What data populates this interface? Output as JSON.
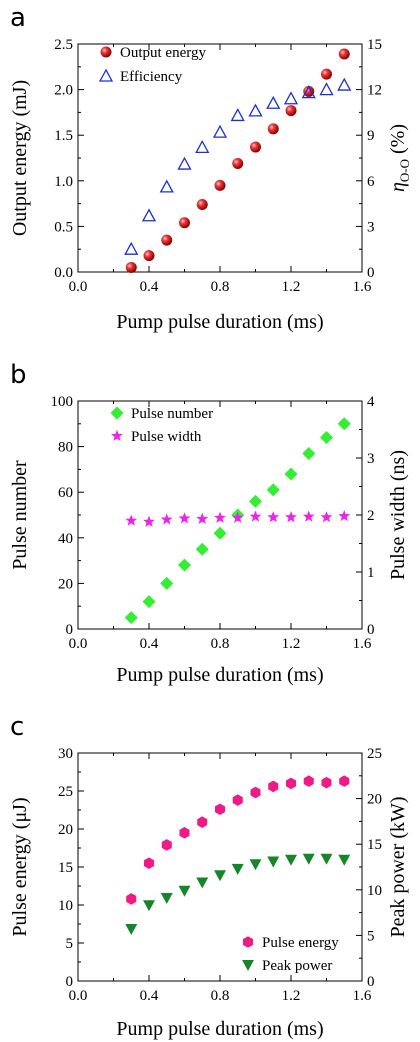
{
  "chart_data": [
    {
      "panel": "a",
      "type": "scatter",
      "xlabel": "Pump pulse duration (ms)",
      "ylabel": "Output energy (mJ)",
      "y2label": "η_{O-O} (%)",
      "xlim": [
        0.0,
        1.6
      ],
      "ylim": [
        0.0,
        2.5
      ],
      "y2lim": [
        0,
        15
      ],
      "xticks": [
        "0.0",
        "0.4",
        "0.8",
        "1.2",
        "1.6"
      ],
      "yticks": [
        "0.0",
        "0.5",
        "1.0",
        "1.5",
        "2.0",
        "2.5"
      ],
      "y2ticks": [
        "0",
        "3",
        "6",
        "9",
        "12",
        "15"
      ],
      "legend_position": "top-left",
      "series": [
        {
          "name": "Output energy",
          "axis": "left",
          "marker": "sphere",
          "color": "#e8192c",
          "x": [
            0.3,
            0.4,
            0.5,
            0.6,
            0.7,
            0.8,
            0.9,
            1.0,
            1.1,
            1.2,
            1.3,
            1.4,
            1.5
          ],
          "y": [
            0.05,
            0.18,
            0.35,
            0.54,
            0.74,
            0.95,
            1.19,
            1.37,
            1.57,
            1.77,
            1.98,
            2.17,
            2.39
          ]
        },
        {
          "name": "Efficiency",
          "axis": "right",
          "marker": "open-triangle",
          "color": "#1c2fd6",
          "x": [
            0.3,
            0.4,
            0.5,
            0.6,
            0.7,
            0.8,
            0.9,
            1.0,
            1.1,
            1.2,
            1.3,
            1.4,
            1.5
          ],
          "y": [
            1.5,
            3.7,
            5.6,
            7.1,
            8.2,
            9.2,
            10.3,
            10.6,
            11.1,
            11.4,
            11.8,
            12.0,
            12.3
          ]
        }
      ]
    },
    {
      "panel": "b",
      "type": "scatter",
      "xlabel": "Pump pulse duration (ms)",
      "ylabel": "Pulse number",
      "y2label": "Pulse width (ns)",
      "xlim": [
        0.0,
        1.6
      ],
      "ylim": [
        0,
        100
      ],
      "y2lim": [
        0,
        4
      ],
      "xticks": [
        "0.0",
        "0.4",
        "0.8",
        "1.2",
        "1.6"
      ],
      "yticks": [
        "0",
        "20",
        "40",
        "60",
        "80",
        "100"
      ],
      "y2ticks": [
        "0",
        "1",
        "2",
        "3",
        "4"
      ],
      "legend_position": "top-left",
      "series": [
        {
          "name": "Pulse number",
          "axis": "left",
          "marker": "diamond",
          "color": "#33ee33",
          "x": [
            0.3,
            0.4,
            0.5,
            0.6,
            0.7,
            0.8,
            0.9,
            1.0,
            1.1,
            1.2,
            1.3,
            1.4,
            1.5
          ],
          "y": [
            5,
            12,
            20,
            28,
            35,
            42,
            50,
            56,
            61,
            68,
            77,
            84,
            90
          ]
        },
        {
          "name": "Pulse width",
          "axis": "right",
          "marker": "star",
          "color": "#ee22ee",
          "x": [
            0.3,
            0.4,
            0.5,
            0.6,
            0.7,
            0.8,
            0.9,
            1.0,
            1.1,
            1.2,
            1.3,
            1.4,
            1.5
          ],
          "y": [
            1.9,
            1.88,
            1.92,
            1.94,
            1.93,
            1.95,
            1.95,
            1.97,
            1.96,
            1.96,
            1.97,
            1.96,
            1.98
          ]
        }
      ]
    },
    {
      "panel": "c",
      "type": "scatter",
      "xlabel": "Pump pulse duration (ms)",
      "ylabel": "Pulse energy (μJ)",
      "y2label": "Peak power (kW)",
      "xlim": [
        0.0,
        1.6
      ],
      "ylim": [
        0,
        30
      ],
      "y2lim": [
        0,
        25
      ],
      "xticks": [
        "0.0",
        "0.4",
        "0.8",
        "1.2",
        "1.6"
      ],
      "yticks": [
        "0",
        "5",
        "10",
        "15",
        "20",
        "25",
        "30"
      ],
      "y2ticks": [
        "0",
        "5",
        "10",
        "15",
        "20",
        "25"
      ],
      "legend_position": "bottom-right",
      "series": [
        {
          "name": "Pulse energy",
          "axis": "left",
          "marker": "hexagon",
          "color": "#ee1a88",
          "x": [
            0.3,
            0.4,
            0.5,
            0.6,
            0.7,
            0.8,
            0.9,
            1.0,
            1.1,
            1.2,
            1.3,
            1.4,
            1.5
          ],
          "y": [
            10.8,
            15.5,
            17.9,
            19.5,
            20.9,
            22.6,
            23.8,
            24.8,
            25.6,
            26.0,
            26.3,
            26.1,
            26.3
          ]
        },
        {
          "name": "Peak power",
          "axis": "right",
          "marker": "down-triangle",
          "color": "#17862a",
          "x": [
            0.3,
            0.4,
            0.5,
            0.6,
            0.7,
            0.8,
            0.9,
            1.0,
            1.1,
            1.2,
            1.3,
            1.4,
            1.5
          ],
          "y": [
            5.7,
            8.3,
            9.1,
            9.9,
            10.8,
            11.6,
            12.3,
            12.8,
            13.1,
            13.3,
            13.4,
            13.4,
            13.3
          ]
        }
      ]
    }
  ]
}
